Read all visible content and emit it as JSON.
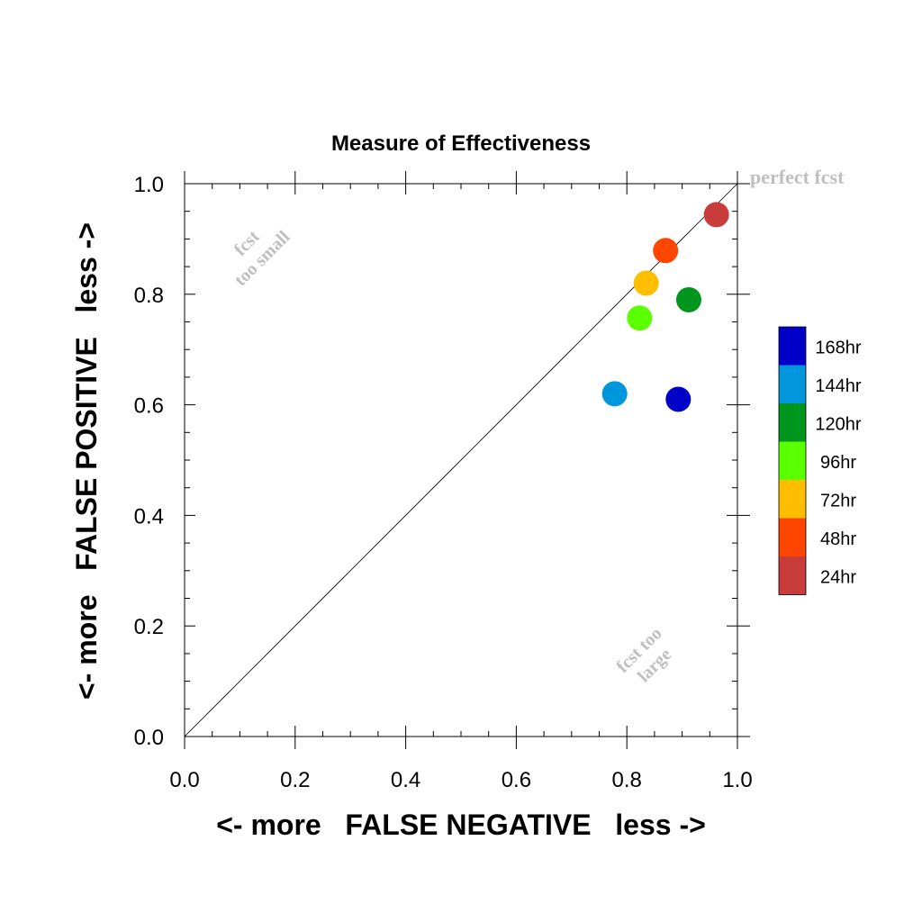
{
  "chart_data": {
    "type": "scatter",
    "title": "Measure of Effectiveness",
    "xlabel": "<- more   FALSE NEGATIVE   less ->",
    "ylabel": "<- more   FALSE POSITIVE   less ->",
    "xlim": [
      0.0,
      1.0
    ],
    "ylim": [
      0.0,
      1.0
    ],
    "x_ticks": [
      "0.0",
      "0.2",
      "0.4",
      "0.6",
      "0.8",
      "1.0"
    ],
    "y_ticks": [
      "0.0",
      "0.2",
      "0.4",
      "0.6",
      "0.8",
      "1.0"
    ],
    "grid": false,
    "legend_position": "right",
    "annotations": {
      "perfect": "perfect fcst",
      "too_small_1": "fcst",
      "too_small_2": "too small",
      "too_large_1": "fcst too",
      "too_large_2": "large"
    },
    "series": [
      {
        "name": "168hr",
        "color": "#0000c8",
        "x": 0.893,
        "y": 0.61
      },
      {
        "name": "144hr",
        "color": "#0096dc",
        "x": 0.778,
        "y": 0.62
      },
      {
        "name": "120hr",
        "color": "#00961e",
        "x": 0.912,
        "y": 0.79
      },
      {
        "name": "96hr",
        "color": "#5aff00",
        "x": 0.823,
        "y": 0.757
      },
      {
        "name": "72hr",
        "color": "#ffbe00",
        "x": 0.835,
        "y": 0.82
      },
      {
        "name": "48hr",
        "color": "#ff4600",
        "x": 0.87,
        "y": 0.879
      },
      {
        "name": "24hr",
        "color": "#c83c3c",
        "x": 0.962,
        "y": 0.944
      }
    ]
  }
}
